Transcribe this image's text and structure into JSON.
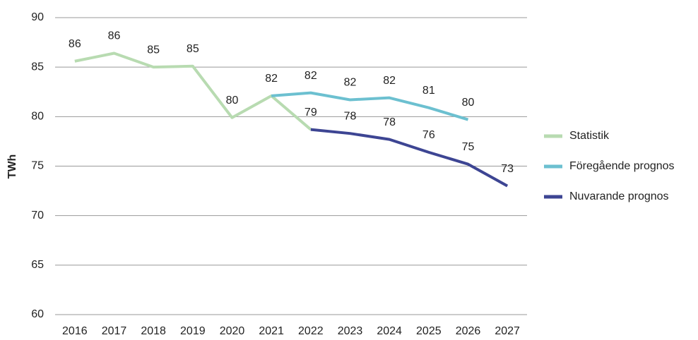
{
  "chart_data": {
    "type": "line",
    "y_label": "TWh",
    "categories": [
      "2016",
      "2017",
      "2018",
      "2019",
      "2020",
      "2021",
      "2022",
      "2023",
      "2024",
      "2025",
      "2026",
      "2027"
    ],
    "series": [
      {
        "name": "Statistik",
        "color": "#b8dbb1",
        "values": [
          85.6,
          86.4,
          85.0,
          85.1,
          79.9,
          82.1,
          78.7,
          null,
          null,
          null,
          null,
          null
        ],
        "value_labels": [
          "86",
          "86",
          "85",
          "85",
          "80",
          "82",
          null,
          null,
          null,
          null,
          null,
          null
        ]
      },
      {
        "name": "Föregående prognos",
        "color": "#6cc0d0",
        "values": [
          null,
          null,
          null,
          null,
          null,
          82.1,
          82.4,
          81.7,
          81.9,
          80.9,
          79.7,
          null
        ],
        "value_labels": [
          null,
          null,
          null,
          null,
          null,
          null,
          "82",
          "82",
          "82",
          "81",
          "80",
          null
        ]
      },
      {
        "name": "Nuvarande prognos",
        "color": "#3d4593",
        "values": [
          null,
          null,
          null,
          null,
          null,
          null,
          78.7,
          78.3,
          77.7,
          76.4,
          75.2,
          73.0
        ],
        "value_labels": [
          null,
          null,
          null,
          null,
          null,
          null,
          "79",
          "78",
          "78",
          "76",
          "75",
          "73"
        ]
      }
    ],
    "ylim": [
      60,
      90
    ],
    "yticks": [
      60,
      65,
      70,
      75,
      80,
      85,
      90
    ],
    "grid": true,
    "legend": "right"
  }
}
